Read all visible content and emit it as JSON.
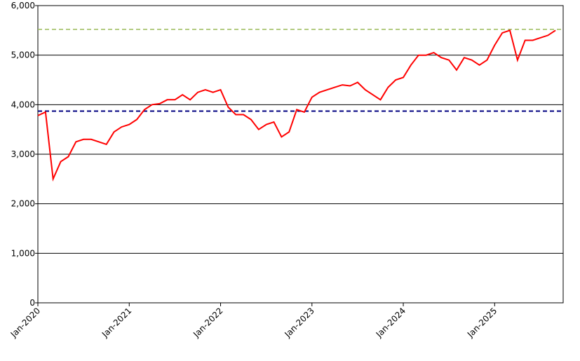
{
  "chart_data": {
    "type": "line",
    "x": [
      "2020-01",
      "2020-02",
      "2020-03",
      "2020-04",
      "2020-05",
      "2020-06",
      "2020-07",
      "2020-08",
      "2020-09",
      "2020-10",
      "2020-11",
      "2020-12",
      "2021-01",
      "2021-02",
      "2021-03",
      "2021-04",
      "2021-05",
      "2021-06",
      "2021-07",
      "2021-08",
      "2021-09",
      "2021-10",
      "2021-11",
      "2021-12",
      "2022-01",
      "2022-02",
      "2022-03",
      "2022-04",
      "2022-05",
      "2022-06",
      "2022-07",
      "2022-08",
      "2022-09",
      "2022-10",
      "2022-11",
      "2022-12",
      "2023-01",
      "2023-02",
      "2023-03",
      "2023-04",
      "2023-05",
      "2023-06",
      "2023-07",
      "2023-08",
      "2023-09",
      "2023-10",
      "2023-11",
      "2023-12",
      "2024-01",
      "2024-02",
      "2024-03",
      "2024-04",
      "2024-05",
      "2024-06",
      "2024-07",
      "2024-08",
      "2024-09",
      "2024-10",
      "2024-11",
      "2024-12",
      "2025-01",
      "2025-02",
      "2025-03",
      "2025-04",
      "2025-05",
      "2025-06",
      "2025-07",
      "2025-08",
      "2025-09"
    ],
    "values": [
      3780,
      3850,
      2500,
      2850,
      2950,
      3250,
      3300,
      3300,
      3250,
      3200,
      3450,
      3550,
      3600,
      3700,
      3900,
      4000,
      4020,
      4100,
      4100,
      4200,
      4100,
      4250,
      4300,
      4250,
      4300,
      3950,
      3800,
      3800,
      3700,
      3500,
      3600,
      3650,
      3350,
      3450,
      3900,
      3850,
      4150,
      4250,
      4300,
      4350,
      4400,
      4380,
      4450,
      4300,
      4200,
      4100,
      4350,
      4500,
      4550,
      4800,
      5000,
      5000,
      5050,
      4950,
      4900,
      4700,
      4950,
      4900,
      4800,
      4900,
      5200,
      5450,
      5500,
      4900,
      5300,
      5300,
      5350,
      5400,
      5500
    ],
    "color": "#ff0000",
    "xlim": [
      "2020-01",
      "2025-10"
    ],
    "xticks": [
      {
        "value": "2020-01",
        "label": "Jan-2020"
      },
      {
        "value": "2021-01",
        "label": "Jan-2021"
      },
      {
        "value": "2022-01",
        "label": "Jan-2022"
      },
      {
        "value": "2023-01",
        "label": "Jan-2023"
      },
      {
        "value": "2024-01",
        "label": "Jan-2024"
      },
      {
        "value": "2025-01",
        "label": "Jan-2025"
      }
    ],
    "ylim": [
      0,
      6000
    ],
    "yticks": [
      0,
      {
        "value": 1000,
        "label": "1,000"
      },
      {
        "value": 2000,
        "label": "2,000"
      },
      {
        "value": 3000,
        "label": "3,000"
      },
      {
        "value": 4000,
        "label": "4,000"
      },
      {
        "value": 5000,
        "label": "5,000"
      },
      {
        "value": 6000,
        "label": "6,000"
      }
    ],
    "grid": true,
    "hlines": [
      {
        "value": 5520,
        "color": "#9bbb59"
      },
      {
        "value": 3870,
        "color": "#000080"
      }
    ]
  }
}
